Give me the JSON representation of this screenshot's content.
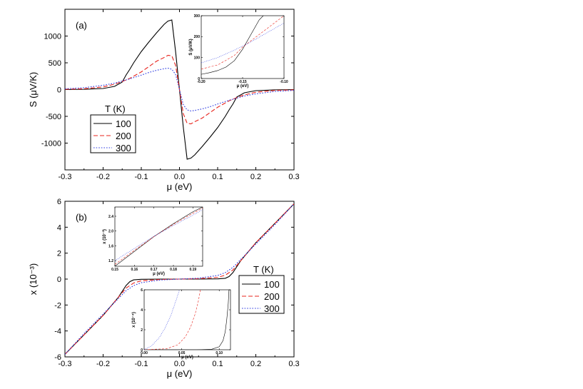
{
  "chart_data": [
    {
      "id": "a",
      "type": "line",
      "panel_label": "(a)",
      "xlabel": "μ (eV)",
      "ylabel": "S (μV/K)",
      "xlim": [
        -0.3,
        0.3
      ],
      "ylim": [
        -1500,
        1500
      ],
      "xticks": [
        -0.3,
        -0.2,
        -0.1,
        0.0,
        0.1,
        0.2,
        0.3
      ],
      "xtick_labels": [
        "-0.3",
        "-0.2",
        "-0.1",
        "0.0",
        "0.1",
        "0.2",
        "0.3"
      ],
      "yticks": [
        -1000,
        -500,
        0,
        500,
        1000
      ],
      "ytick_labels": [
        "-1000",
        "-500",
        "0",
        "500",
        "1000"
      ],
      "legend": {
        "title": "T (K)",
        "placement": "lower-left",
        "entries": [
          "100",
          "200",
          "300"
        ]
      },
      "series": [
        {
          "name": "100",
          "color": "#000000",
          "dash": "solid",
          "x": [
            -0.3,
            -0.25,
            -0.2,
            -0.17,
            -0.15,
            -0.14,
            -0.13,
            -0.12,
            -0.1,
            -0.08,
            -0.06,
            -0.04,
            -0.03,
            -0.02,
            -0.01,
            0.0,
            0.01,
            0.02,
            0.03,
            0.04,
            0.06,
            0.08,
            0.1,
            0.12,
            0.13,
            0.14,
            0.15,
            0.17,
            0.2,
            0.25,
            0.3
          ],
          "y": [
            0,
            5,
            20,
            60,
            140,
            270,
            380,
            500,
            710,
            890,
            1060,
            1220,
            1280,
            1300,
            700,
            0,
            -700,
            -1300,
            -1280,
            -1220,
            -1060,
            -890,
            -710,
            -500,
            -380,
            -270,
            -140,
            -60,
            -20,
            -5,
            0
          ]
        },
        {
          "name": "200",
          "color": "#e8251e",
          "dash": "dashed",
          "x": [
            -0.3,
            -0.25,
            -0.2,
            -0.17,
            -0.15,
            -0.13,
            -0.1,
            -0.08,
            -0.06,
            -0.04,
            -0.03,
            -0.02,
            -0.01,
            0.0,
            0.01,
            0.02,
            0.03,
            0.04,
            0.06,
            0.08,
            0.1,
            0.13,
            0.15,
            0.17,
            0.2,
            0.25,
            0.3
          ],
          "y": [
            5,
            15,
            50,
            100,
            150,
            210,
            330,
            430,
            530,
            600,
            640,
            630,
            450,
            0,
            -450,
            -630,
            -640,
            -600,
            -530,
            -430,
            -330,
            -210,
            -150,
            -100,
            -50,
            -15,
            -5
          ]
        },
        {
          "name": "300",
          "color": "#2c3be0",
          "dash": "dotted",
          "x": [
            -0.3,
            -0.25,
            -0.2,
            -0.17,
            -0.15,
            -0.13,
            -0.1,
            -0.08,
            -0.06,
            -0.04,
            -0.03,
            -0.02,
            -0.01,
            0.0,
            0.01,
            0.02,
            0.03,
            0.04,
            0.06,
            0.08,
            0.1,
            0.13,
            0.15,
            0.17,
            0.2,
            0.25,
            0.3
          ],
          "y": [
            15,
            35,
            80,
            120,
            160,
            200,
            270,
            320,
            360,
            390,
            400,
            380,
            280,
            0,
            -280,
            -380,
            -400,
            -390,
            -360,
            -320,
            -270,
            -200,
            -160,
            -120,
            -80,
            -35,
            -15
          ]
        }
      ]
    },
    {
      "id": "a-inset",
      "type": "line",
      "xlabel": "μ (eV)",
      "ylabel": "S (μV/K)",
      "xlim": [
        -0.2,
        -0.1
      ],
      "ylim": [
        0,
        300
      ],
      "xticks": [
        -0.2,
        -0.15,
        -0.1
      ],
      "xtick_labels": [
        "-0.20",
        "-0.15",
        "-0.10"
      ],
      "yticks": [
        0,
        100,
        200,
        300
      ],
      "ytick_labels": [
        "0",
        "100",
        "200",
        "300"
      ],
      "series": [
        {
          "name": "100",
          "color": "#000000",
          "dash": "solid",
          "x": [
            -0.2,
            -0.19,
            -0.18,
            -0.17,
            -0.16,
            -0.15,
            -0.14,
            -0.13,
            -0.125
          ],
          "y": [
            20,
            28,
            38,
            55,
            85,
            140,
            210,
            280,
            300
          ]
        },
        {
          "name": "200",
          "color": "#e8251e",
          "dash": "dashed",
          "x": [
            -0.2,
            -0.18,
            -0.16,
            -0.15,
            -0.14,
            -0.12,
            -0.1
          ],
          "y": [
            45,
            65,
            110,
            150,
            180,
            240,
            300
          ]
        },
        {
          "name": "300",
          "color": "#2c3be0",
          "dash": "dotted",
          "x": [
            -0.2,
            -0.18,
            -0.16,
            -0.15,
            -0.14,
            -0.12,
            -0.1
          ],
          "y": [
            75,
            100,
            135,
            155,
            175,
            220,
            265
          ]
        }
      ]
    },
    {
      "id": "b",
      "type": "line",
      "panel_label": "(b)",
      "xlabel": "μ (eV)",
      "ylabel": "x (10⁻³)",
      "xlim": [
        -0.3,
        0.3
      ],
      "ylim": [
        -6,
        6
      ],
      "xticks": [
        -0.3,
        -0.2,
        -0.1,
        0.0,
        0.1,
        0.2,
        0.3
      ],
      "xtick_labels": [
        "-0.3",
        "-0.2",
        "-0.1",
        "0.0",
        "0.1",
        "0.2",
        "0.3"
      ],
      "yticks": [
        -6,
        -4,
        -2,
        0,
        2,
        4,
        6
      ],
      "ytick_labels": [
        "-6",
        "-4",
        "-2",
        "0",
        "2",
        "4",
        "6"
      ],
      "legend": {
        "title": "T (K)",
        "placement": "lower-right",
        "entries": [
          "100",
          "200",
          "300"
        ]
      },
      "series": [
        {
          "name": "100",
          "color": "#000000",
          "dash": "solid",
          "x": [
            -0.3,
            -0.25,
            -0.2,
            -0.16,
            -0.14,
            -0.13,
            -0.12,
            -0.1,
            -0.05,
            0.0,
            0.05,
            0.1,
            0.12,
            0.13,
            0.14,
            0.16,
            0.2,
            0.25,
            0.3
          ],
          "y": [
            -5.8,
            -4.3,
            -2.8,
            -1.4,
            -0.5,
            -0.2,
            -0.06,
            -0.02,
            0,
            0,
            0,
            0.02,
            0.06,
            0.2,
            0.5,
            1.4,
            2.8,
            4.3,
            5.8
          ]
        },
        {
          "name": "200",
          "color": "#e8251e",
          "dash": "dashed",
          "x": [
            -0.3,
            -0.25,
            -0.2,
            -0.16,
            -0.14,
            -0.12,
            -0.1,
            -0.05,
            0.0,
            0.05,
            0.1,
            0.12,
            0.14,
            0.16,
            0.2,
            0.25,
            0.3
          ],
          "y": [
            -5.8,
            -4.3,
            -2.8,
            -1.4,
            -0.7,
            -0.3,
            -0.13,
            -0.03,
            0,
            0.03,
            0.13,
            0.3,
            0.7,
            1.4,
            2.8,
            4.3,
            5.8
          ]
        },
        {
          "name": "300",
          "color": "#2c3be0",
          "dash": "dotted",
          "x": [
            -0.3,
            -0.25,
            -0.2,
            -0.16,
            -0.14,
            -0.12,
            -0.1,
            -0.05,
            0.0,
            0.05,
            0.1,
            0.12,
            0.14,
            0.16,
            0.2,
            0.25,
            0.3
          ],
          "y": [
            -5.8,
            -4.2,
            -2.7,
            -1.5,
            -0.9,
            -0.5,
            -0.28,
            -0.07,
            0,
            0.07,
            0.28,
            0.5,
            0.9,
            1.5,
            2.7,
            4.2,
            5.8
          ]
        }
      ]
    },
    {
      "id": "b-inset-top",
      "type": "line",
      "xlabel": "μ (eV)",
      "ylabel": "x (10⁻³)",
      "xlim": [
        0.15,
        0.195
      ],
      "ylim": [
        1.05,
        2.65
      ],
      "xticks": [
        0.15,
        0.16,
        0.17,
        0.18,
        0.19
      ],
      "xtick_labels": [
        "0.15",
        "0.16",
        "0.17",
        "0.18",
        "0.19"
      ],
      "yticks": [
        1.2,
        1.6,
        2.0,
        2.4
      ],
      "ytick_labels": [
        "1.2",
        "1.6",
        "2.0",
        "2.4"
      ],
      "series": [
        {
          "name": "100",
          "color": "#000000",
          "dash": "solid",
          "x": [
            0.15,
            0.16,
            0.17,
            0.18,
            0.19,
            0.195
          ],
          "y": [
            1.05,
            1.45,
            1.85,
            2.2,
            2.52,
            2.65
          ]
        },
        {
          "name": "200",
          "color": "#e8251e",
          "dash": "dashed",
          "x": [
            0.15,
            0.16,
            0.17,
            0.18,
            0.19,
            0.195
          ],
          "y": [
            1.1,
            1.48,
            1.85,
            2.18,
            2.48,
            2.62
          ]
        },
        {
          "name": "300",
          "color": "#2c3be0",
          "dash": "dotted",
          "x": [
            0.15,
            0.16,
            0.17,
            0.18,
            0.19,
            0.195
          ],
          "y": [
            1.2,
            1.53,
            1.86,
            2.15,
            2.43,
            2.58
          ]
        }
      ]
    },
    {
      "id": "b-inset-bottom",
      "type": "line",
      "xlabel": "μ (eV)",
      "ylabel": "x (10⁻⁴)",
      "xlim": [
        0.0,
        0.115
      ],
      "ylim": [
        0,
        6
      ],
      "xticks": [
        0.0,
        0.05,
        0.1
      ],
      "xtick_labels": [
        "0.00",
        "0.05",
        "0.10"
      ],
      "yticks": [
        0,
        2,
        4,
        6
      ],
      "ytick_labels": [
        "0",
        "2",
        "4",
        "6"
      ],
      "series": [
        {
          "name": "100",
          "color": "#000000",
          "dash": "solid",
          "x": [
            0.0,
            0.07,
            0.09,
            0.1,
            0.105,
            0.108,
            0.11,
            0.112,
            0.113
          ],
          "y": [
            0,
            0,
            0.05,
            0.3,
            0.9,
            1.8,
            3.0,
            4.6,
            6
          ]
        },
        {
          "name": "200",
          "color": "#e8251e",
          "dash": "dashed",
          "x": [
            0.0,
            0.03,
            0.045,
            0.055,
            0.062,
            0.068,
            0.072,
            0.075
          ],
          "y": [
            0,
            0.1,
            0.5,
            1.3,
            2.3,
            3.6,
            4.8,
            6
          ]
        },
        {
          "name": "300",
          "color": "#2c3be0",
          "dash": "dotted",
          "x": [
            0.0,
            0.01,
            0.02,
            0.028,
            0.035,
            0.04,
            0.045,
            0.047
          ],
          "y": [
            0,
            0.4,
            1.2,
            2.2,
            3.3,
            4.4,
            5.5,
            6
          ]
        }
      ]
    }
  ]
}
